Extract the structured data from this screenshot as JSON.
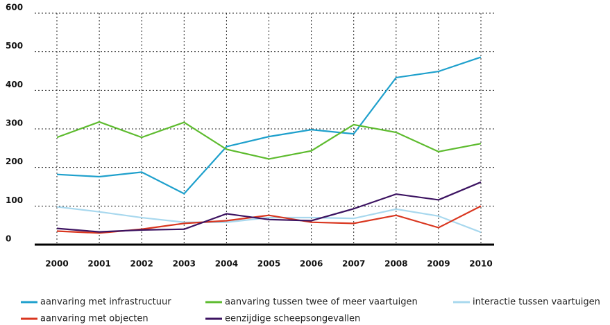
{
  "chart_data": {
    "type": "line",
    "categories": [
      "2000",
      "2001",
      "2002",
      "2003",
      "2004",
      "2005",
      "2006",
      "2007",
      "2008",
      "2009",
      "2010"
    ],
    "ylim": [
      0,
      600
    ],
    "yticks": [
      0,
      100,
      200,
      300,
      400,
      500,
      600
    ],
    "grid": true,
    "series": [
      {
        "name": "aanvaring met infrastructuur",
        "color": "#1ea0cc",
        "values": [
          182,
          176,
          188,
          132,
          254,
          280,
          298,
          287,
          433,
          449,
          486
        ]
      },
      {
        "name": "aanvaring tussen twee of meer vaartuigen",
        "color": "#5dbb2e",
        "values": [
          278,
          318,
          278,
          317,
          247,
          222,
          243,
          311,
          291,
          241,
          262
        ]
      },
      {
        "name": "interactie tussen vaartuigen",
        "color": "#a8d8ee",
        "values": [
          98,
          85,
          70,
          58,
          58,
          70,
          70,
          68,
          92,
          74,
          32
        ]
      },
      {
        "name": "aanvaring met objecten",
        "color": "#d9361f",
        "values": [
          35,
          30,
          40,
          55,
          62,
          76,
          58,
          55,
          76,
          44,
          100
        ]
      },
      {
        "name": "eenzijdige scheepsongevallen",
        "color": "#3c1361",
        "values": [
          42,
          33,
          38,
          40,
          80,
          65,
          62,
          93,
          131,
          116,
          162
        ]
      }
    ]
  }
}
